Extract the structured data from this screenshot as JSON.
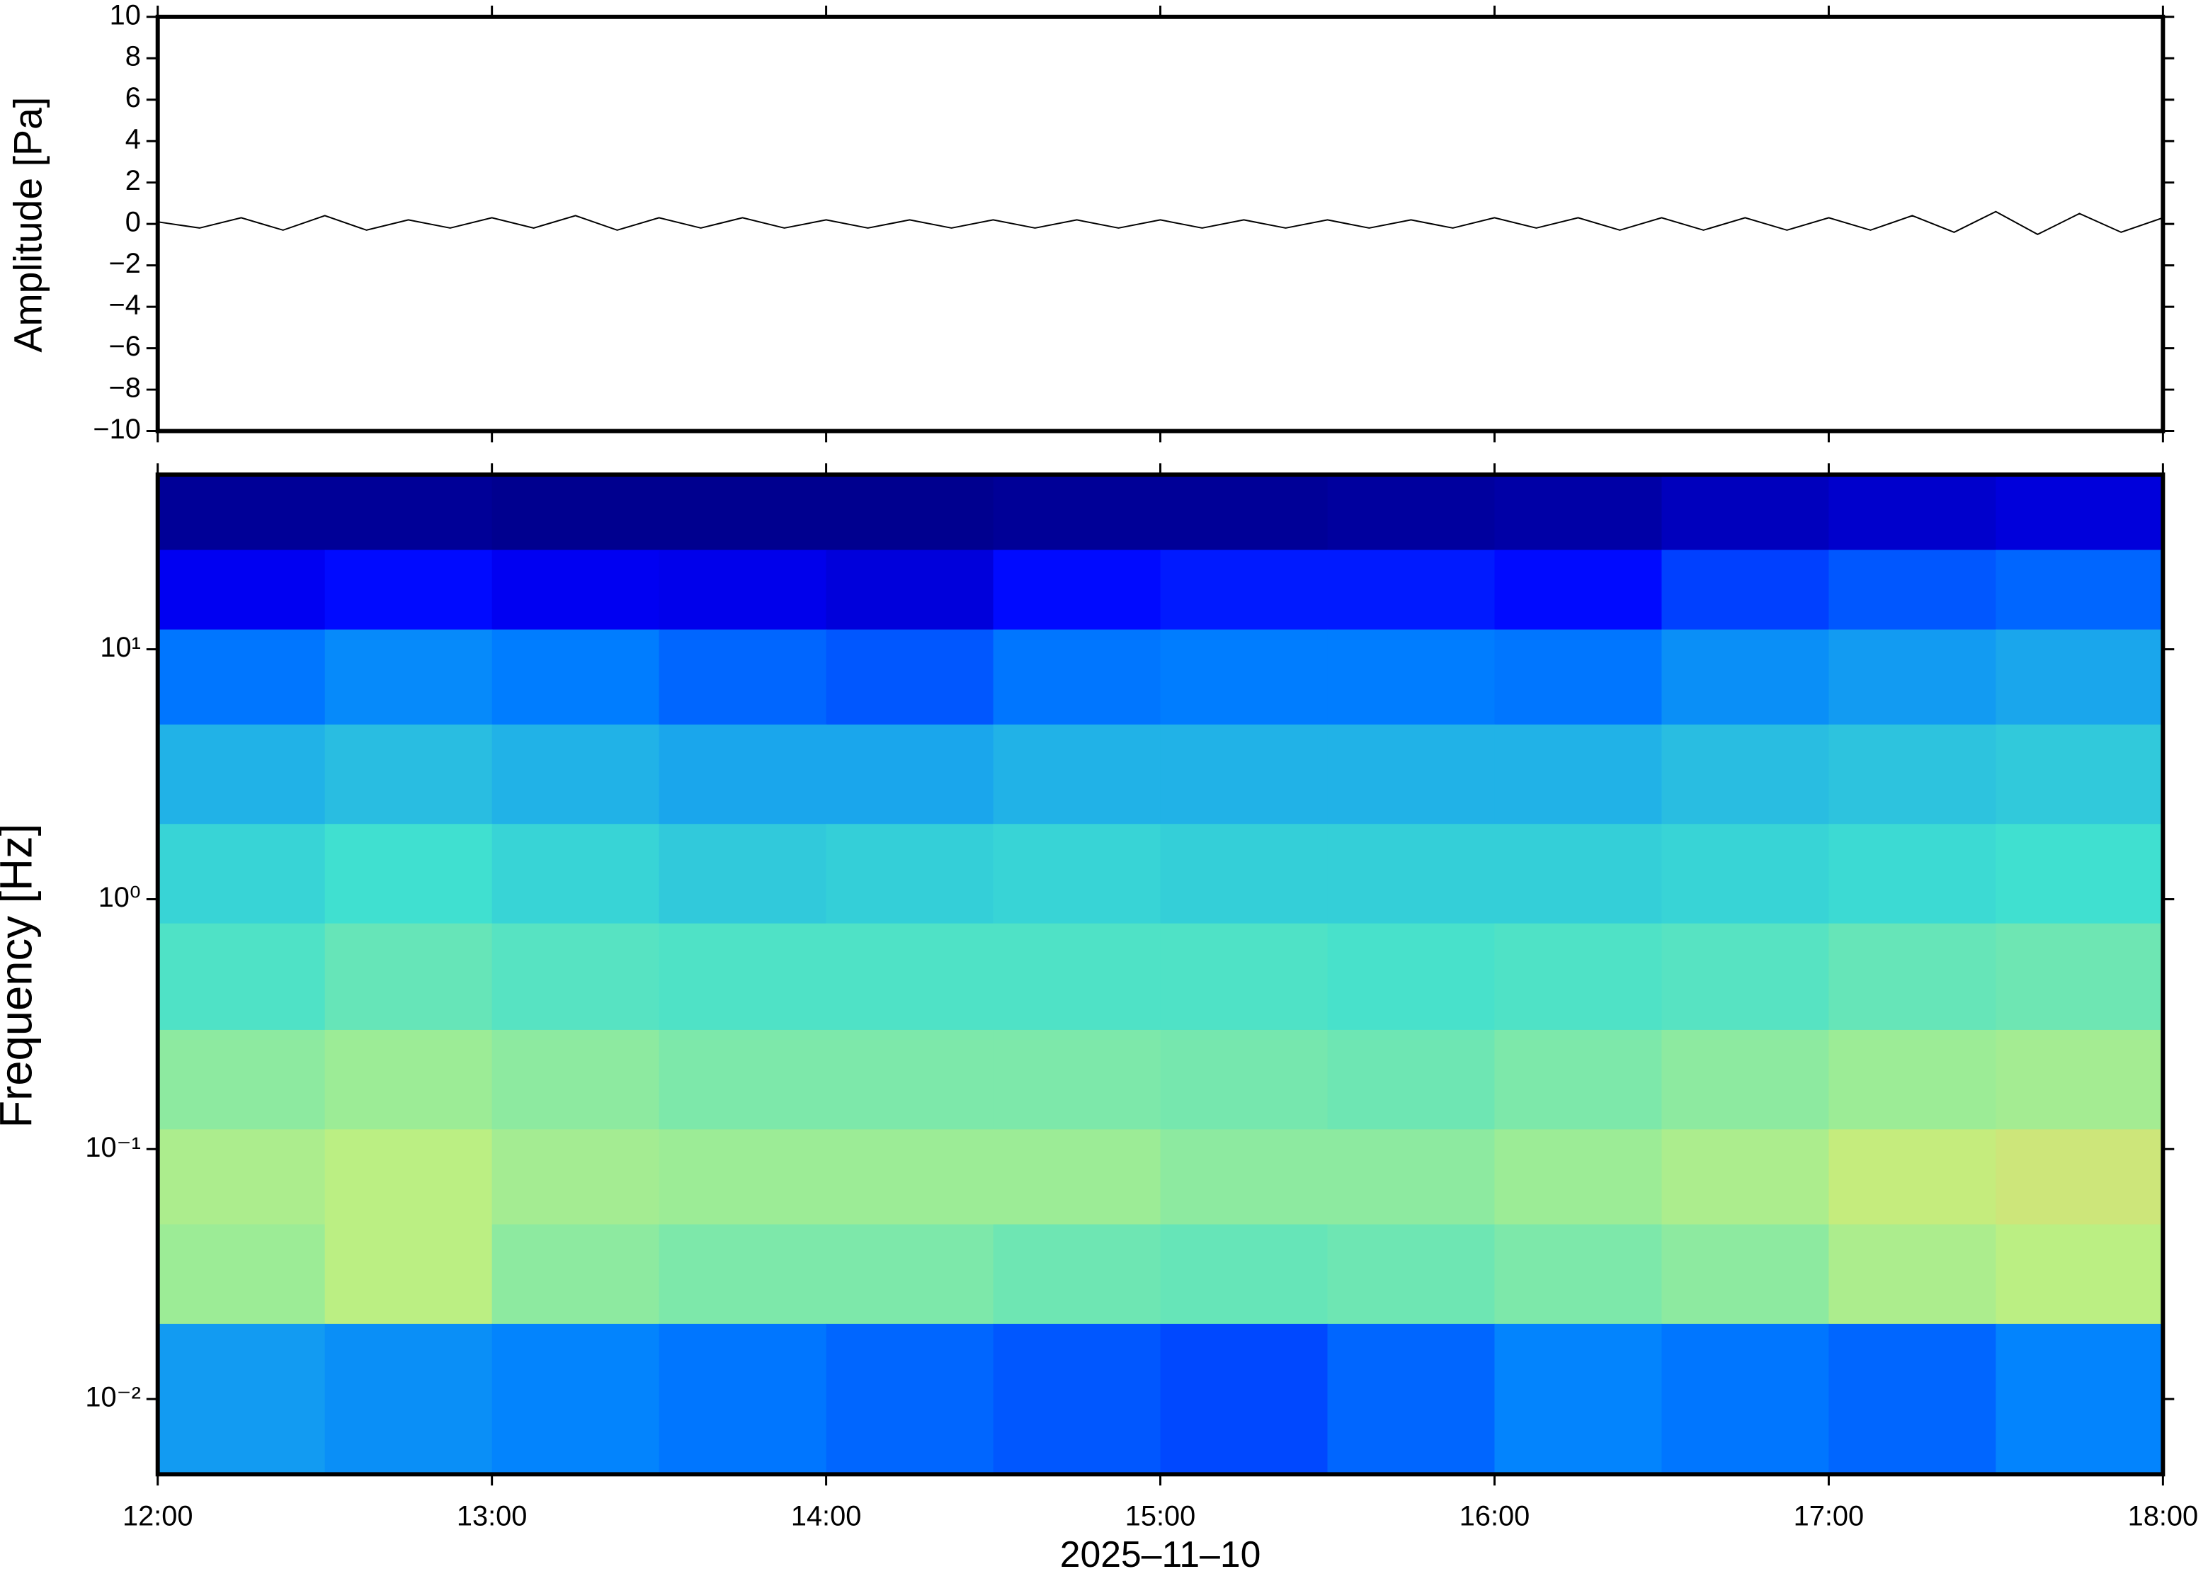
{
  "chart_data": [
    {
      "type": "line",
      "ylabel": "Amplitude [Pa]",
      "color": "#000000",
      "x": [
        12,
        12.125,
        12.25,
        12.375,
        12.5,
        12.625,
        12.75,
        12.875,
        13,
        13.125,
        13.25,
        13.375,
        13.5,
        13.625,
        13.75,
        13.875,
        14,
        14.125,
        14.25,
        14.375,
        14.5,
        14.625,
        14.75,
        14.875,
        15,
        15.125,
        15.25,
        15.375,
        15.5,
        15.625,
        15.75,
        15.875,
        16,
        16.125,
        16.25,
        16.375,
        16.5,
        16.625,
        16.75,
        16.875,
        17,
        17.125,
        17.25,
        17.375,
        17.5,
        17.625,
        17.75,
        17.875,
        18
      ],
      "values": [
        0.1,
        -0.2,
        0.3,
        -0.3,
        0.4,
        -0.3,
        0.2,
        -0.2,
        0.3,
        -0.2,
        0.4,
        -0.3,
        0.3,
        -0.2,
        0.3,
        -0.2,
        0.2,
        -0.2,
        0.2,
        -0.2,
        0.2,
        -0.2,
        0.2,
        -0.2,
        0.2,
        -0.2,
        0.2,
        -0.2,
        0.2,
        -0.2,
        0.2,
        -0.2,
        0.3,
        -0.2,
        0.3,
        -0.3,
        0.3,
        -0.3,
        0.3,
        -0.3,
        0.3,
        -0.3,
        0.4,
        -0.4,
        0.6,
        -0.5,
        0.5,
        -0.4,
        0.3
      ],
      "xlim": [
        12,
        18
      ],
      "ylim": [
        -10,
        10
      ],
      "yticks": [
        {
          "value": -10,
          "label": "−10"
        },
        {
          "value": -8,
          "label": "−8"
        },
        {
          "value": -6,
          "label": "−6"
        },
        {
          "value": -4,
          "label": "−4"
        },
        {
          "value": -2,
          "label": "−2"
        },
        0,
        2,
        4,
        6,
        8,
        10
      ]
    },
    {
      "type": "heatmap",
      "ylabel": "Frequency [Hz]",
      "xlabel": "2025–11–10",
      "yscale": "log",
      "xlim": [
        12,
        18
      ],
      "ylim": [
        0.005,
        50
      ],
      "xticks": [
        {
          "value": 12,
          "label": "12:00"
        },
        {
          "value": 13,
          "label": "13:00"
        },
        {
          "value": 14,
          "label": "14:00"
        },
        {
          "value": 15,
          "label": "15:00"
        },
        {
          "value": 16,
          "label": "16:00"
        },
        {
          "value": 17,
          "label": "17:00"
        },
        {
          "value": 18,
          "label": "18:00"
        }
      ],
      "yticks": [
        {
          "value": 0.01,
          "label": "10⁻²"
        },
        {
          "value": 0.1,
          "label": "10⁻¹"
        },
        {
          "value": 1,
          "label": "10⁰"
        },
        {
          "value": 10,
          "label": "10¹"
        }
      ],
      "xbins": [
        12,
        12.5,
        13,
        13.5,
        14,
        14.5,
        15,
        15.5,
        16,
        16.5,
        17,
        17.5,
        18
      ],
      "ybins": [
        50,
        25,
        12,
        5,
        2,
        0.8,
        0.3,
        0.12,
        0.05,
        0.02,
        0.005
      ],
      "zlim": [
        0,
        100
      ],
      "colormap": [
        "#000080",
        "#0000ff",
        "#0080ff",
        "#40e0d0",
        "#c0f080",
        "#ffc060",
        "#ff4000"
      ],
      "values": [
        [
          3,
          3,
          2,
          2,
          2,
          3,
          3,
          4,
          5,
          8,
          10,
          12
        ],
        [
          15,
          18,
          15,
          14,
          12,
          18,
          20,
          20,
          18,
          25,
          28,
          30
        ],
        [
          32,
          35,
          33,
          30,
          28,
          32,
          33,
          33,
          32,
          36,
          38,
          40
        ],
        [
          42,
          44,
          42,
          40,
          40,
          42,
          42,
          42,
          42,
          44,
          45,
          46
        ],
        [
          48,
          50,
          48,
          46,
          47,
          48,
          47,
          47,
          47,
          48,
          49,
          50
        ],
        [
          52,
          55,
          53,
          52,
          52,
          52,
          52,
          51,
          52,
          53,
          55,
          56
        ],
        [
          60,
          62,
          60,
          58,
          58,
          58,
          57,
          56,
          58,
          60,
          62,
          63
        ],
        [
          64,
          66,
          63,
          62,
          62,
          62,
          60,
          60,
          62,
          64,
          68,
          70
        ],
        [
          62,
          66,
          60,
          58,
          58,
          56,
          55,
          56,
          58,
          60,
          64,
          66
        ],
        [
          38,
          36,
          34,
          32,
          30,
          28,
          26,
          30,
          34,
          32,
          30,
          34
        ]
      ]
    }
  ]
}
